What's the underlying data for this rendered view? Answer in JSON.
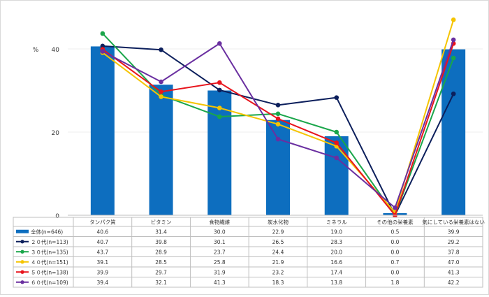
{
  "chart_data": {
    "type": "bar+line",
    "ylabel": "%",
    "ylim": [
      0,
      50
    ],
    "yticks": [
      0,
      20,
      40
    ],
    "grid": true,
    "categories": [
      "タンパク質",
      "ビタミン",
      "食物繊維",
      "炭水化物",
      "ミネラル",
      "その他の栄養素",
      "気にしている栄養素はない"
    ],
    "bar_series": {
      "name": "全体(n=646)",
      "color": "#0d6ebf",
      "values": [
        40.6,
        31.4,
        30.0,
        22.9,
        19.0,
        0.5,
        39.9
      ],
      "labels": [
        "40.6",
        "31.4",
        "30.0",
        "22.9",
        "19.0",
        "0.5",
        "39.9"
      ]
    },
    "line_series": [
      {
        "name": "２０代(n=113)",
        "color": "#0c1f5c",
        "values": [
          40.7,
          39.8,
          30.1,
          26.5,
          28.3,
          0.0,
          29.2
        ],
        "labels": [
          "40.7",
          "39.8",
          "30.1",
          "26.5",
          "28.3",
          "0.0",
          "29.2"
        ]
      },
      {
        "name": "３０代(n=135)",
        "color": "#1aa64a",
        "values": [
          43.7,
          28.9,
          23.7,
          24.4,
          20.0,
          0.0,
          37.8
        ],
        "labels": [
          "43.7",
          "28.9",
          "23.7",
          "24.4",
          "20.0",
          "0.0",
          "37.8"
        ]
      },
      {
        "name": "４０代(n=151)",
        "color": "#f5c400",
        "values": [
          39.1,
          28.5,
          25.8,
          21.9,
          16.6,
          0.7,
          47.0
        ],
        "labels": [
          "39.1",
          "28.5",
          "25.8",
          "21.9",
          "16.6",
          "0.7",
          "47.0"
        ]
      },
      {
        "name": "５０代(n=138)",
        "color": "#e8141c",
        "values": [
          39.9,
          29.7,
          31.9,
          23.2,
          17.4,
          0.0,
          41.3
        ],
        "labels": [
          "39.9",
          "29.7",
          "31.9",
          "23.2",
          "17.4",
          "0.0",
          "41.3"
        ]
      },
      {
        "name": "６０代(n=109)",
        "color": "#6a2fa0",
        "values": [
          39.4,
          32.1,
          41.3,
          18.3,
          13.8,
          1.8,
          42.2
        ],
        "labels": [
          "39.4",
          "32.1",
          "41.3",
          "18.3",
          "13.8",
          "1.8",
          "42.2"
        ]
      }
    ]
  }
}
